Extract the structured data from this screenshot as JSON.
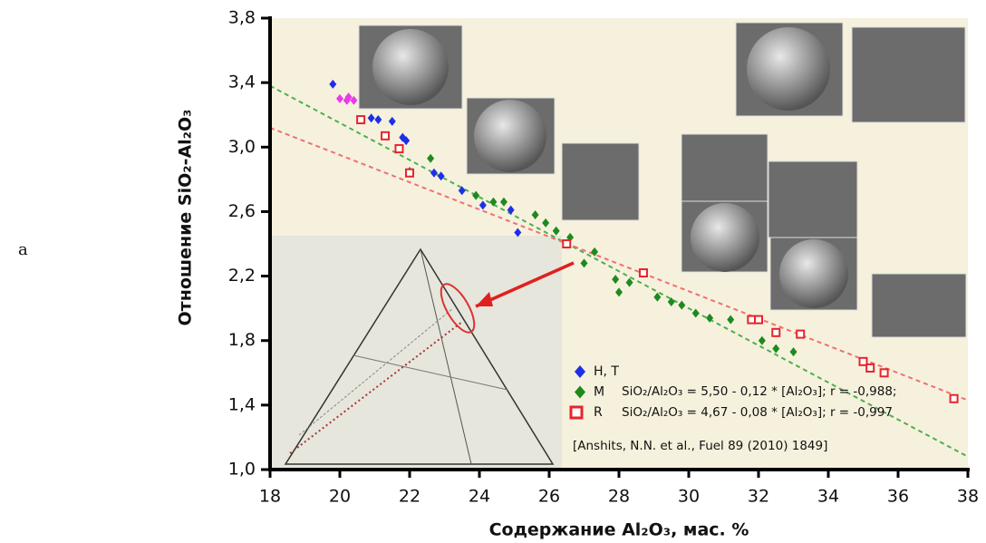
{
  "panel_label": "a",
  "chart_data": {
    "type": "scatter",
    "x_label": "Содержание Al₂O₃, мас. %",
    "y_label": "Отношение SiO₂-Al₂O₃",
    "xlim": [
      18,
      38
    ],
    "xticks": [
      18,
      20,
      22,
      24,
      26,
      28,
      30,
      32,
      34,
      36,
      38
    ],
    "ylim": [
      1.0,
      3.8
    ],
    "yticks": [
      {
        "value": 1.0,
        "label": "1,0"
      },
      {
        "value": 1.4,
        "label": "1,4"
      },
      {
        "value": 1.8,
        "label": "1,8"
      },
      {
        "value": 2.2,
        "label": "2,2"
      },
      {
        "value": 2.6,
        "label": "2,6"
      },
      {
        "value": 3.0,
        "label": "3,0"
      },
      {
        "value": 3.4,
        "label": "3,4"
      },
      {
        "value": 3.8,
        "label": "3,8"
      }
    ],
    "series": [
      {
        "name": "H, T",
        "color": "#1f2fe8",
        "marker": "diamond",
        "x": [
          19.8,
          20.9,
          21.1,
          21.5,
          21.8,
          21.9,
          22.7,
          22.9,
          23.5,
          24.1,
          24.9,
          25.1
        ],
        "values": [
          3.39,
          3.18,
          3.17,
          3.16,
          3.06,
          3.04,
          2.84,
          2.82,
          2.73,
          2.64,
          2.61,
          2.47
        ]
      },
      {
        "name": "M",
        "color": "#1e8a1e",
        "marker": "diamond",
        "x": [
          22.0,
          22.6,
          23.9,
          24.4,
          24.7,
          25.6,
          25.9,
          26.2,
          26.6,
          27.0,
          27.3,
          27.9,
          28.0,
          28.3,
          29.1,
          29.5,
          29.8,
          30.2,
          30.6,
          31.2,
          32.1,
          32.5,
          33.0
        ],
        "values": [
          2.85,
          2.93,
          2.7,
          2.66,
          2.66,
          2.58,
          2.53,
          2.48,
          2.44,
          2.28,
          2.35,
          2.18,
          2.1,
          2.16,
          2.07,
          2.04,
          2.02,
          1.97,
          1.94,
          1.93,
          1.8,
          1.75,
          1.73
        ]
      },
      {
        "name": "R",
        "color": "#e8242a",
        "marker": "square",
        "x": [
          20.6,
          21.3,
          21.7,
          22.0,
          26.5,
          28.7,
          31.8,
          32.0,
          32.5,
          33.2,
          35.0,
          35.2,
          35.6,
          37.6
        ],
        "values": [
          3.17,
          3.07,
          2.99,
          2.84,
          2.4,
          2.22,
          1.93,
          1.93,
          1.85,
          1.84,
          1.67,
          1.63,
          1.6,
          1.44
        ]
      },
      {
        "color": "#e83ce8",
        "marker": "diamond",
        "x": [
          20.0,
          20.2,
          20.4,
          20.25
        ],
        "values": [
          3.3,
          3.29,
          3.29,
          3.31
        ]
      }
    ],
    "fit_lines": [
      {
        "color": "#4caf50",
        "x": [
          18,
          38
        ],
        "values": [
          3.38,
          1.08
        ]
      },
      {
        "color": "#f07070",
        "x": [
          18,
          38
        ],
        "values": [
          3.12,
          1.43
        ]
      }
    ],
    "annotations": [
      "SiO₂/Al₂O₃ = 5,50 - 0,12 * [Al₂O₃]; r = -0,988;",
      "SiO₂/Al₂O₃ = 4,67 - 0,08 * [Al₂O₃]; r = -0,997",
      "[Anshits, N.N. et al., Fuel 89 (2010) 1849]"
    ]
  }
}
